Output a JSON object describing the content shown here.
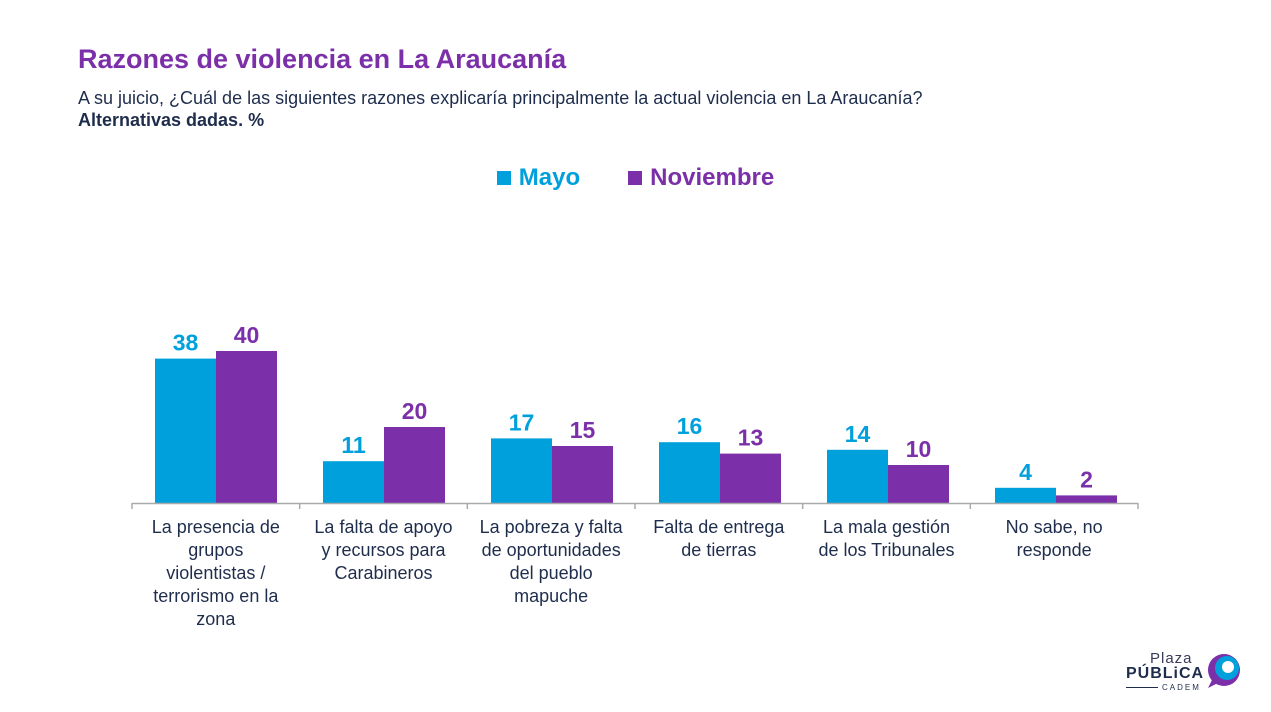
{
  "header": {
    "title": "Razones de violencia en La Araucanía",
    "subtitle": "A su juicio, ¿Cuál de las siguientes razones explicaría principalmente la actual violencia en La Araucanía?",
    "note": "Alternativas dadas. %"
  },
  "colors": {
    "mayo": "#00a0dc",
    "noviembre": "#7b2fa8",
    "axis": "#aaaaaa"
  },
  "chart_data": {
    "type": "bar",
    "categories": [
      "La presencia de grupos violentistas / terrorismo en la zona",
      "La falta de apoyo y recursos para Carabineros",
      "La pobreza y falta de oportunidades del pueblo mapuche",
      "Falta de entrega de tierras",
      "La mala gestión de los Tribunales",
      "No sabe, no responde"
    ],
    "series": [
      {
        "name": "Mayo",
        "values": [
          38,
          11,
          17,
          16,
          14,
          4
        ]
      },
      {
        "name": "Noviembre",
        "values": [
          40,
          20,
          15,
          13,
          10,
          2
        ]
      }
    ],
    "title": "Razones de violencia en La Araucanía",
    "ylabel": "%",
    "ylim": [
      0,
      40
    ],
    "grid": false,
    "legend": "top-center"
  },
  "category_lines": [
    "La presencia de\ngrupos\nviolentistas /\nterrorismo en la\nzona",
    "La falta de apoyo\ny recursos para\nCarabineros",
    "La pobreza y falta\nde oportunidades\ndel pueblo\nmapuche",
    "Falta de entrega\nde tierras",
    "La mala gestión\nde los Tribunales",
    "No sabe, no\nresponde"
  ],
  "logo": {
    "top": "Plaza",
    "main": "PÚBLiCA",
    "sub": "CADEM"
  }
}
